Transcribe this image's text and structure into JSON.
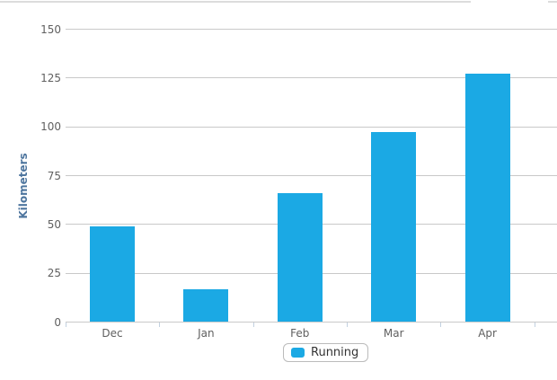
{
  "chart_data": {
    "type": "bar",
    "categories": [
      "Dec",
      "Jan",
      "Feb",
      "Mar",
      "Apr"
    ],
    "series": [
      {
        "name": "Running",
        "values": [
          49,
          17,
          66,
          97.5,
          127
        ]
      }
    ],
    "title": "",
    "xlabel": "",
    "ylabel": "Kilometers",
    "ylim": [
      0,
      150
    ],
    "yticks": [
      0,
      25,
      50,
      75,
      100,
      125,
      150
    ],
    "grid": true,
    "legend_position": "bottom"
  },
  "legend": {
    "label": "Running"
  },
  "colors": {
    "bar": "#1BA9E4",
    "grid": "#C9C9C9",
    "axis_line": "#C9C9C9",
    "x_tick": "#C2D1E0",
    "axis_label": "#606060",
    "axis_title": "#4D759E",
    "legend_border": "#BBBBBB",
    "legend_text": "#333333",
    "top_divider": "#DCDCDC"
  }
}
